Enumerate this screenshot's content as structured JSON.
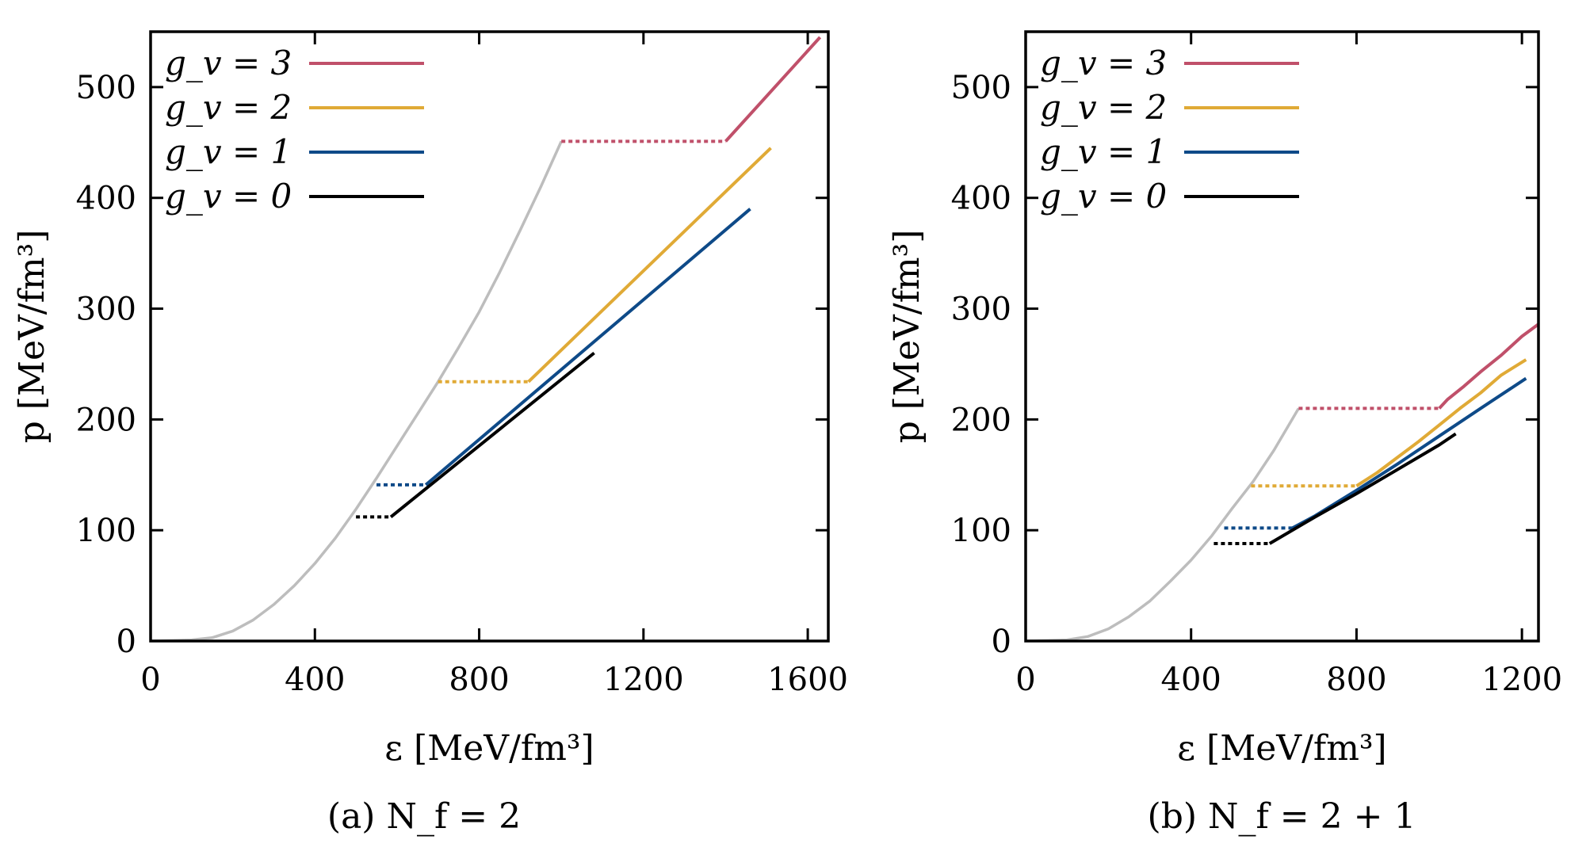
{
  "chart_data": [
    {
      "type": "line",
      "panel": "a",
      "caption": "(a)  N_f = 2",
      "xlabel": "ε [MeV/fm³]",
      "ylabel": "p [MeV/fm³]",
      "xlim": [
        0,
        1650
      ],
      "ylim": [
        0,
        550
      ],
      "xticks": [
        0,
        400,
        800,
        1200,
        1600
      ],
      "yticks": [
        0,
        100,
        200,
        300,
        400,
        500
      ],
      "legend_position": "top-left",
      "legend": [
        {
          "label": "g_v = 3",
          "color": "#c0506a"
        },
        {
          "label": "g_v = 2",
          "color": "#e0aa36"
        },
        {
          "label": "g_v = 1",
          "color": "#0e4a88"
        },
        {
          "label": "g_v = 0",
          "color": "#000000"
        }
      ],
      "series": [
        {
          "key": "hadronic",
          "color": "#bdbdbd",
          "style": "solid",
          "x": [
            0,
            100,
            150,
            200,
            250,
            300,
            350,
            400,
            450,
            500,
            550,
            600,
            650,
            700,
            750,
            800,
            850,
            900,
            950,
            1000
          ],
          "y": [
            0,
            1,
            3,
            9,
            19,
            33,
            50,
            70,
            93,
            119,
            147,
            176,
            205,
            234,
            265,
            297,
            333,
            371,
            410,
            451
          ]
        },
        {
          "key": "gv3_transition",
          "color": "#c0506a",
          "style": "dotted",
          "x": [
            1000,
            1400
          ],
          "y": [
            451,
            451
          ]
        },
        {
          "key": "gv3_quark",
          "color": "#c0506a",
          "style": "solid",
          "x": [
            1400,
            1630
          ],
          "y": [
            451,
            545
          ]
        },
        {
          "key": "gv2_transition",
          "color": "#e0aa36",
          "style": "dotted",
          "x": [
            700,
            920
          ],
          "y": [
            234,
            234
          ]
        },
        {
          "key": "gv2_quark",
          "color": "#e0aa36",
          "style": "solid",
          "x": [
            920,
            1510
          ],
          "y": [
            234,
            445
          ]
        },
        {
          "key": "gv1_transition",
          "color": "#0e4a88",
          "style": "dotted",
          "x": [
            550,
            670
          ],
          "y": [
            141,
            141
          ]
        },
        {
          "key": "gv1_quark",
          "color": "#0e4a88",
          "style": "solid",
          "x": [
            670,
            1460
          ],
          "y": [
            141,
            390
          ]
        },
        {
          "key": "gv0_transition",
          "color": "#000000",
          "style": "dotted",
          "x": [
            500,
            585
          ],
          "y": [
            112,
            112
          ]
        },
        {
          "key": "gv0_quark",
          "color": "#000000",
          "style": "solid",
          "x": [
            585,
            1080
          ],
          "y": [
            112,
            260
          ]
        }
      ]
    },
    {
      "type": "line",
      "panel": "b",
      "caption": "(b)  N_f = 2 + 1",
      "xlabel": "ε [MeV/fm³]",
      "ylabel": "p [MeV/fm³]",
      "xlim": [
        0,
        1240
      ],
      "ylim": [
        0,
        550
      ],
      "xticks": [
        0,
        400,
        800,
        1200
      ],
      "yticks": [
        0,
        100,
        200,
        300,
        400,
        500
      ],
      "legend_position": "top-left",
      "legend": [
        {
          "label": "g_v = 3",
          "color": "#c0506a"
        },
        {
          "label": "g_v = 2",
          "color": "#e0aa36"
        },
        {
          "label": "g_v = 1",
          "color": "#0e4a88"
        },
        {
          "label": "g_v = 0",
          "color": "#000000"
        }
      ],
      "series": [
        {
          "key": "hadronic",
          "color": "#bdbdbd",
          "style": "solid",
          "x": [
            0,
            100,
            150,
            200,
            250,
            300,
            350,
            400,
            450,
            500,
            550,
            600,
            660
          ],
          "y": [
            0,
            1,
            4,
            11,
            22,
            36,
            54,
            73,
            95,
            120,
            144,
            172,
            210
          ]
        },
        {
          "key": "gv3_transition",
          "color": "#c0506a",
          "style": "dotted",
          "x": [
            660,
            1000
          ],
          "y": [
            210,
            210
          ]
        },
        {
          "key": "gv3_quark",
          "color": "#c0506a",
          "style": "solid",
          "x": [
            1000,
            1020,
            1060,
            1100,
            1150,
            1200,
            1240
          ],
          "y": [
            210,
            218,
            230,
            243,
            258,
            275,
            286
          ]
        },
        {
          "key": "gv2_transition",
          "color": "#e0aa36",
          "style": "dotted",
          "x": [
            545,
            800
          ],
          "y": [
            140,
            140
          ]
        },
        {
          "key": "gv2_quark",
          "color": "#e0aa36",
          "style": "solid",
          "x": [
            800,
            850,
            900,
            950,
            1000,
            1050,
            1100,
            1150,
            1210
          ],
          "y": [
            140,
            152,
            166,
            180,
            195,
            210,
            224,
            240,
            254
          ]
        },
        {
          "key": "gv1_transition",
          "color": "#0e4a88",
          "style": "dotted",
          "x": [
            480,
            645
          ],
          "y": [
            102,
            102
          ]
        },
        {
          "key": "gv1_quark",
          "color": "#0e4a88",
          "style": "solid",
          "x": [
            645,
            700,
            800,
            900,
            1000,
            1100,
            1210
          ],
          "y": [
            102,
            113,
            136,
            160,
            185,
            210,
            237
          ]
        },
        {
          "key": "gv0_transition",
          "color": "#000000",
          "style": "dotted",
          "x": [
            455,
            590
          ],
          "y": [
            88,
            88
          ]
        },
        {
          "key": "gv0_quark",
          "color": "#000000",
          "style": "solid",
          "x": [
            590,
            700,
            800,
            900,
            1000,
            1040
          ],
          "y": [
            88,
            112,
            133,
            155,
            177,
            187
          ]
        }
      ]
    }
  ]
}
